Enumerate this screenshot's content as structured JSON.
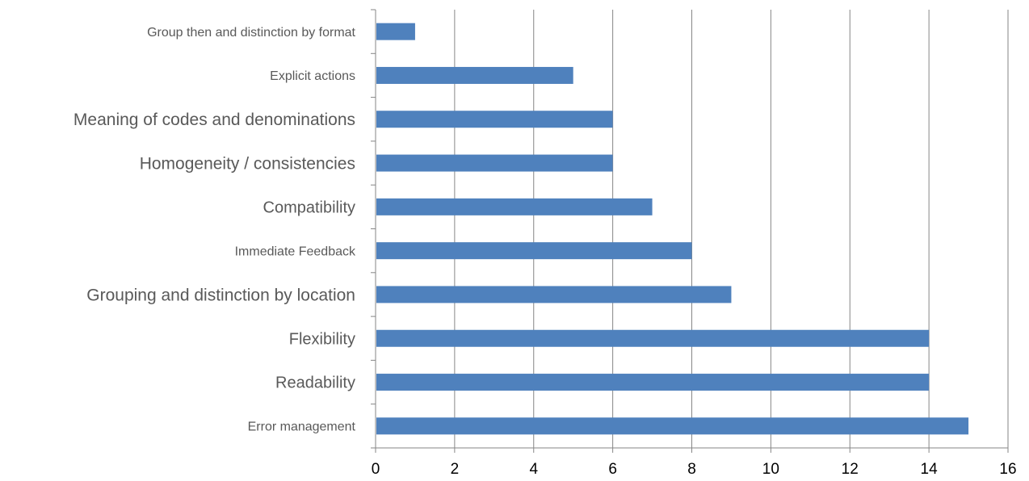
{
  "chart_data": {
    "type": "bar",
    "orientation": "horizontal",
    "categories": [
      "Group then and distinction by format",
      "Explicit actions",
      "Meaning of codes and denominations",
      "Homogeneity / consistencies",
      "Compatibility",
      "Immediate Feedback",
      "Grouping and distinction by location",
      "Flexibility",
      "Readability",
      "Error management"
    ],
    "values": [
      1,
      5,
      6,
      6,
      7,
      8,
      9,
      14,
      14,
      15
    ],
    "x_ticks": [
      "0",
      "2",
      "4",
      "6",
      "8",
      "10",
      "12",
      "14",
      "16"
    ],
    "xlim": [
      0,
      16
    ],
    "grid": "vertical",
    "legend": "none",
    "bar_color": "#4f81bd",
    "gridline_color": "#868686"
  }
}
